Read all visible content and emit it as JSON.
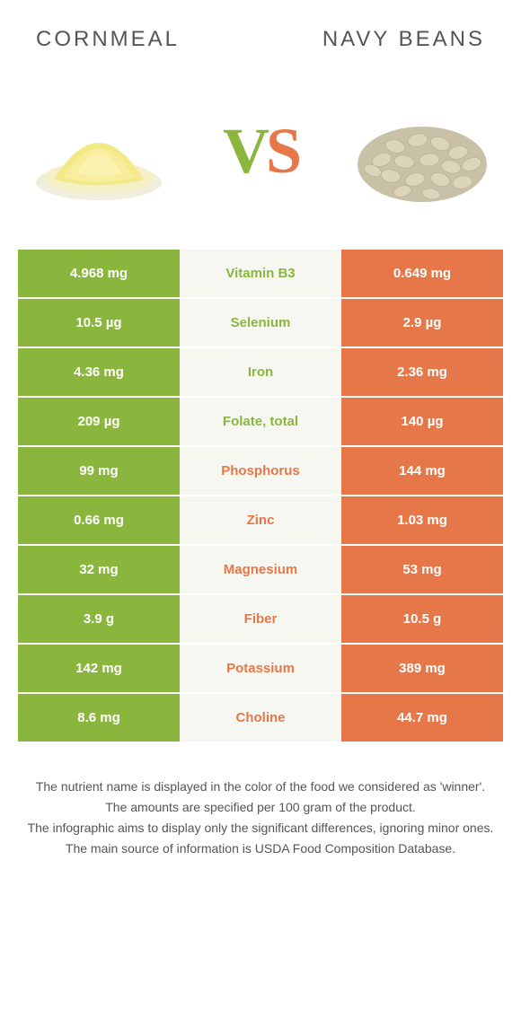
{
  "header": {
    "left_title": "Cornmeal",
    "right_title": "Navy Beans"
  },
  "vs": {
    "v": "V",
    "s": "S"
  },
  "colors": {
    "left_bg": "#8bb63e",
    "right_bg": "#e67748",
    "mid_bg": "#f7f7f2",
    "left_text": "#8bb63e",
    "right_text": "#e67748"
  },
  "rows": [
    {
      "left": "4.968 mg",
      "name": "Vitamin B3",
      "right": "0.649 mg",
      "winner": "left"
    },
    {
      "left": "10.5 µg",
      "name": "Selenium",
      "right": "2.9 µg",
      "winner": "left"
    },
    {
      "left": "4.36 mg",
      "name": "Iron",
      "right": "2.36 mg",
      "winner": "left"
    },
    {
      "left": "209 µg",
      "name": "Folate, total",
      "right": "140 µg",
      "winner": "left"
    },
    {
      "left": "99 mg",
      "name": "Phosphorus",
      "right": "144 mg",
      "winner": "right"
    },
    {
      "left": "0.66 mg",
      "name": "Zinc",
      "right": "1.03 mg",
      "winner": "right"
    },
    {
      "left": "32 mg",
      "name": "Magnesium",
      "right": "53 mg",
      "winner": "right"
    },
    {
      "left": "3.9 g",
      "name": "Fiber",
      "right": "10.5 g",
      "winner": "right"
    },
    {
      "left": "142 mg",
      "name": "Potassium",
      "right": "389 mg",
      "winner": "right"
    },
    {
      "left": "8.6 mg",
      "name": "Choline",
      "right": "44.7 mg",
      "winner": "right"
    }
  ],
  "footer": {
    "l1": "The nutrient name is displayed in the color of the food we considered as 'winner'.",
    "l2": "The amounts are specified per 100 gram of the product.",
    "l3": "The infographic aims to display only the significant differences, ignoring minor ones.",
    "l4": "The main source of information is USDA Food Composition Database."
  }
}
